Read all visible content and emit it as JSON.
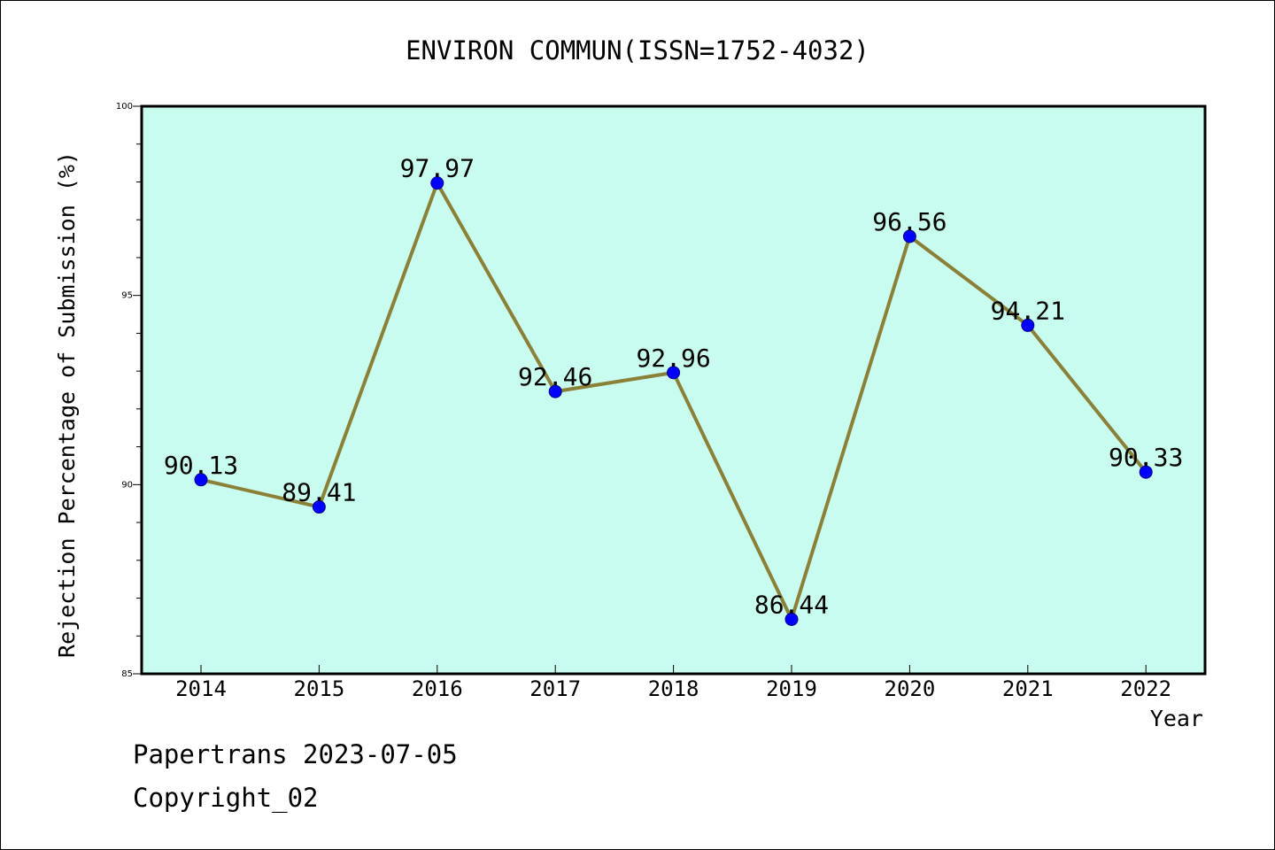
{
  "chart_data": {
    "type": "line",
    "title": "ENVIRON COMMUN(ISSN=1752-4032)",
    "xlabel": "Year",
    "ylabel": "Rejection Percentage of Submission (%)",
    "x": [
      "2014",
      "2015",
      "2016",
      "2017",
      "2018",
      "2019",
      "2020",
      "2021",
      "2022"
    ],
    "values": [
      90.13,
      89.41,
      97.97,
      92.46,
      92.96,
      86.44,
      96.56,
      94.21,
      90.33
    ],
    "data_labels": [
      "90.13",
      "89.41",
      "97.97",
      "92.46",
      "92.96",
      "86.44",
      "96.56",
      "94.21",
      "90.33"
    ],
    "ylim": [
      85,
      100
    ],
    "yticks": [
      85,
      90,
      95,
      100
    ],
    "ytick_labels": [
      "85",
      "90",
      "95",
      "100"
    ],
    "grid": false,
    "colors": {
      "plot_background": "#c8fcee",
      "line": "#8b8038",
      "marker": "#0000ff"
    }
  },
  "footer": {
    "line1": "Papertrans 2023-07-05",
    "line2": "Copyright_02"
  }
}
